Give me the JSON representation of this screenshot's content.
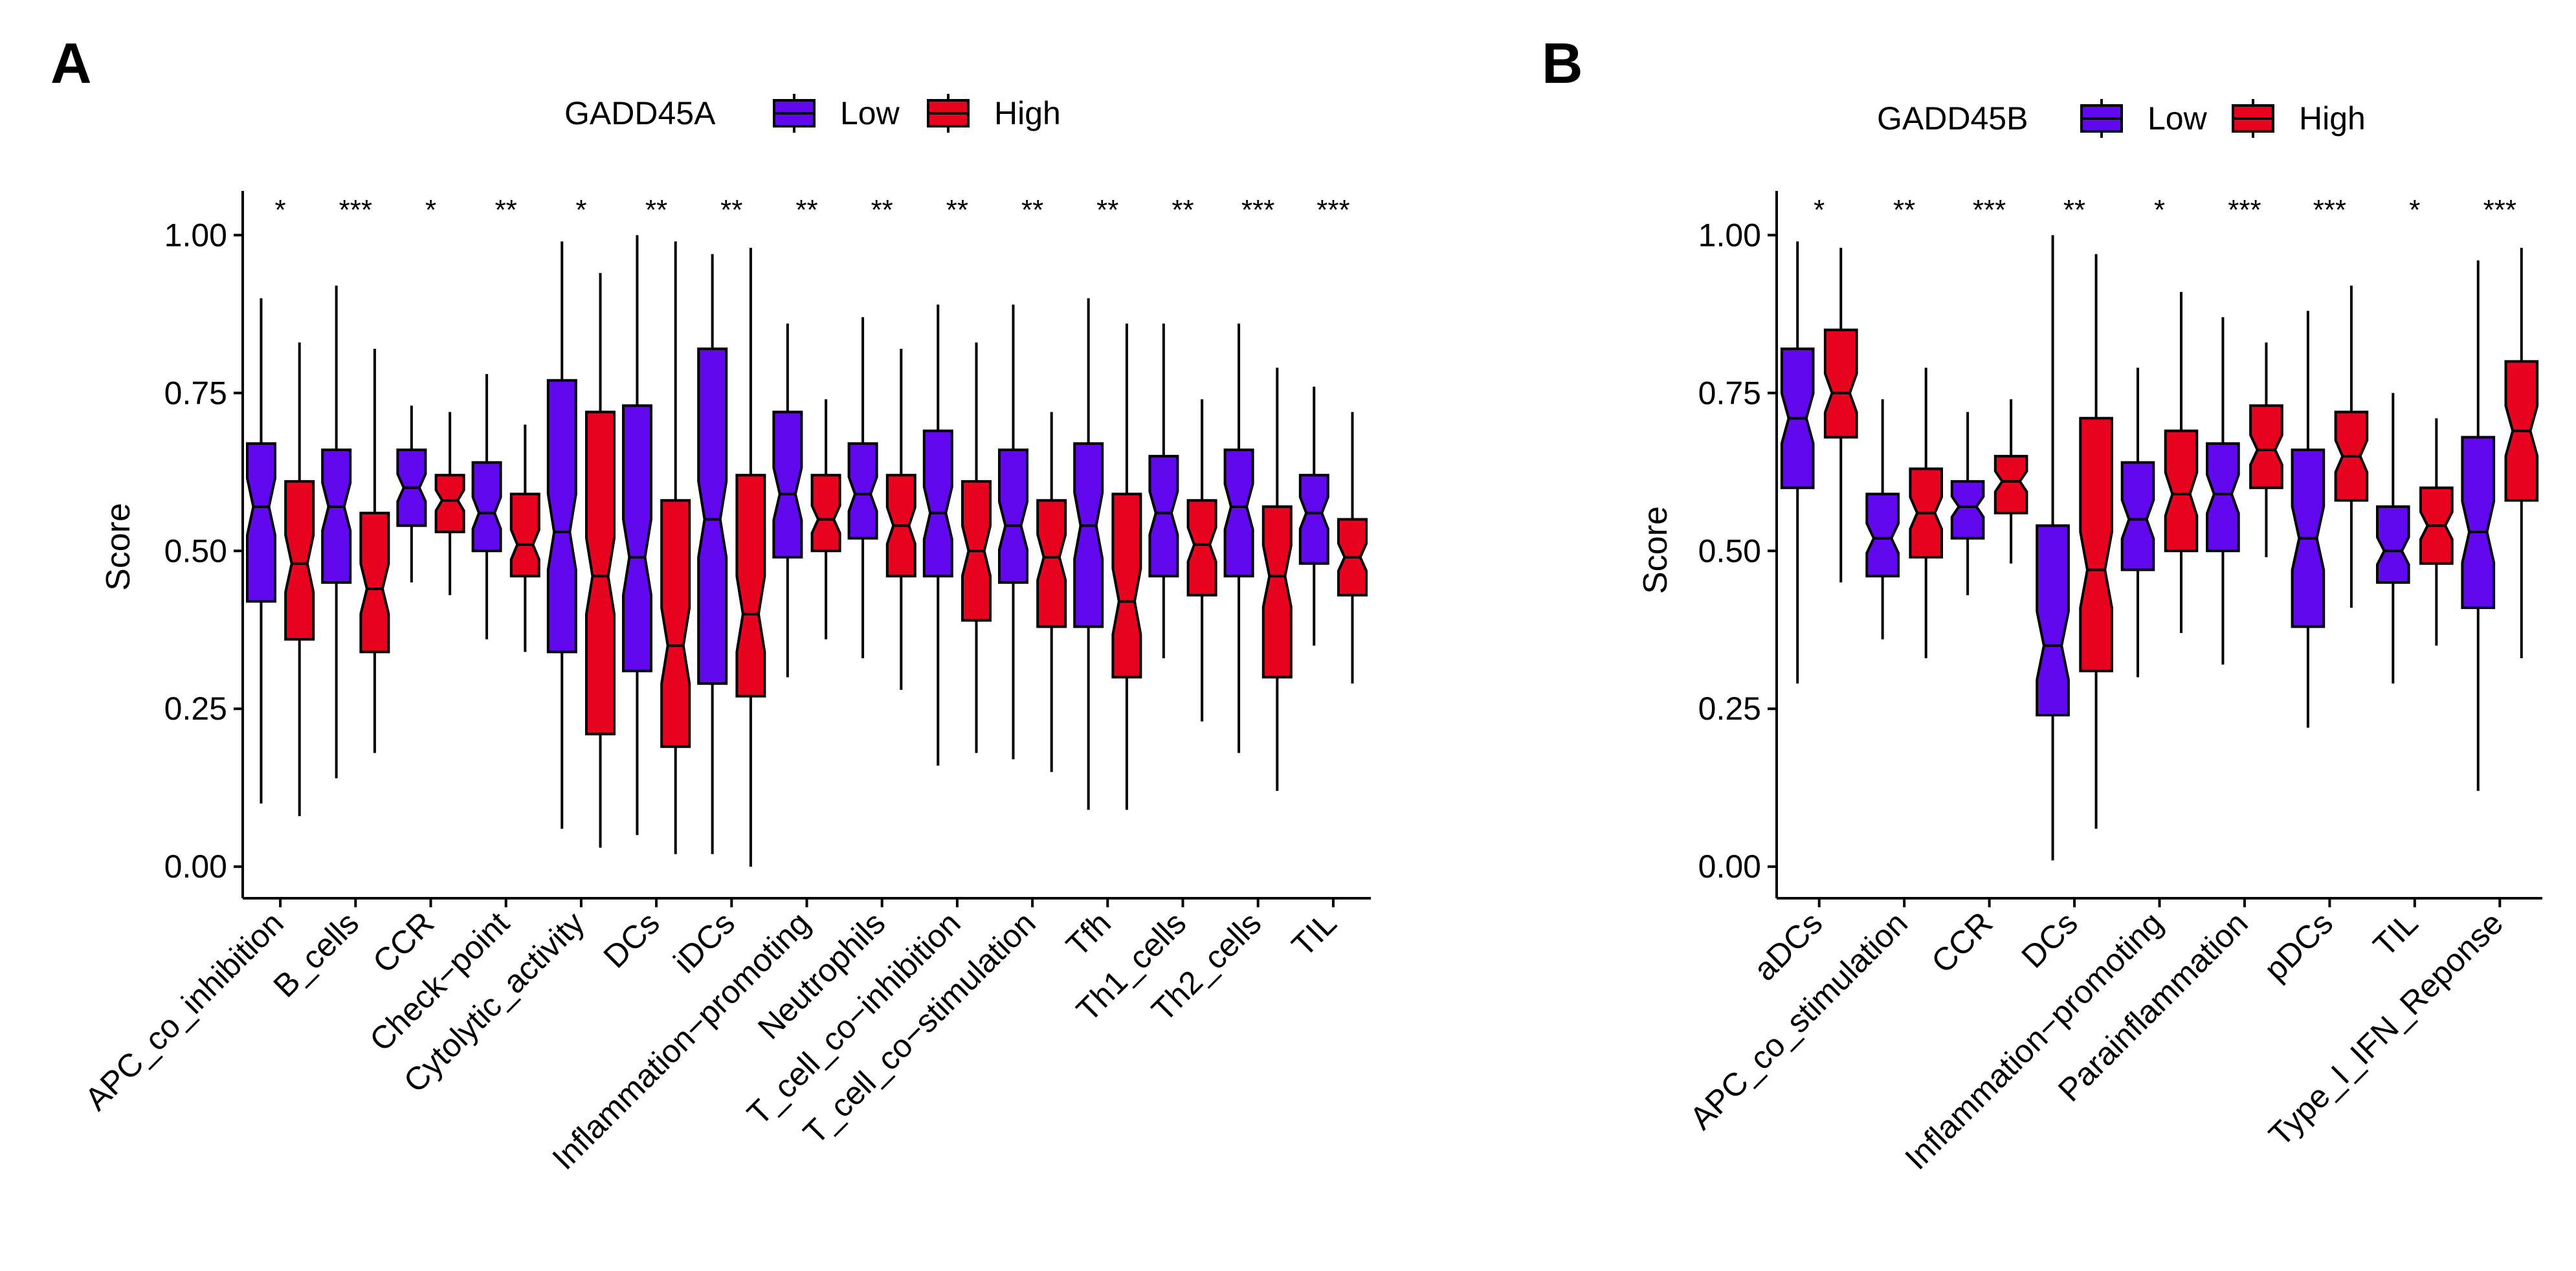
{
  "colors": {
    "low": "#6108ee",
    "high": "#e8041e",
    "stroke": "#000000"
  },
  "chart_data": [
    {
      "type": "boxplot",
      "panel_label": "A",
      "legend_title": "GADD45A",
      "legend_labels": [
        "Low",
        "High"
      ],
      "ylabel": "Score",
      "xlabel": "",
      "ylim": [
        -0.05,
        1.07
      ],
      "yticks": [
        "0.00",
        "0.25",
        "0.50",
        "0.75",
        "1.00"
      ],
      "categories": [
        "APC_co_inhibition",
        "B_cells",
        "CCR",
        "Check−point",
        "Cytolytic_activity",
        "DCs",
        "iDCs",
        "Inflammation−promoting",
        "Neutrophils",
        "T_cell_co−inhibition",
        "T_cell_co−stimulation",
        "Tfh",
        "Th1_cells",
        "Th2_cells",
        "TIL"
      ],
      "significance": [
        "*",
        "***",
        "*",
        "**",
        "*",
        "**",
        "**",
        "**",
        "**",
        "**",
        "**",
        "**",
        "**",
        "***",
        "***"
      ],
      "series": [
        {
          "name": "Low",
          "boxes": [
            [
              0.1,
              0.42,
              0.57,
              0.67,
              0.9
            ],
            [
              0.14,
              0.45,
              0.57,
              0.66,
              0.92
            ],
            [
              0.45,
              0.54,
              0.6,
              0.66,
              0.73
            ],
            [
              0.36,
              0.5,
              0.56,
              0.64,
              0.78
            ],
            [
              0.06,
              0.34,
              0.53,
              0.77,
              0.99
            ],
            [
              0.05,
              0.31,
              0.49,
              0.73,
              1.0
            ],
            [
              0.02,
              0.29,
              0.55,
              0.82,
              0.97
            ],
            [
              0.3,
              0.49,
              0.59,
              0.72,
              0.86
            ],
            [
              0.33,
              0.52,
              0.59,
              0.67,
              0.87
            ],
            [
              0.16,
              0.46,
              0.56,
              0.69,
              0.89
            ],
            [
              0.17,
              0.45,
              0.54,
              0.66,
              0.89
            ],
            [
              0.09,
              0.38,
              0.54,
              0.67,
              0.9
            ],
            [
              0.33,
              0.46,
              0.56,
              0.65,
              0.86
            ],
            [
              0.18,
              0.46,
              0.57,
              0.66,
              0.86
            ],
            [
              0.35,
              0.48,
              0.56,
              0.62,
              0.76
            ]
          ]
        },
        {
          "name": "High",
          "boxes": [
            [
              0.08,
              0.36,
              0.48,
              0.61,
              0.83
            ],
            [
              0.18,
              0.34,
              0.44,
              0.56,
              0.82
            ],
            [
              0.43,
              0.53,
              0.58,
              0.62,
              0.72
            ],
            [
              0.34,
              0.46,
              0.51,
              0.59,
              0.7
            ],
            [
              0.03,
              0.21,
              0.46,
              0.72,
              0.94
            ],
            [
              0.02,
              0.19,
              0.35,
              0.58,
              0.99
            ],
            [
              0.0,
              0.27,
              0.4,
              0.62,
              0.98
            ],
            [
              0.36,
              0.5,
              0.55,
              0.62,
              0.74
            ],
            [
              0.28,
              0.46,
              0.54,
              0.62,
              0.82
            ],
            [
              0.18,
              0.39,
              0.5,
              0.61,
              0.83
            ],
            [
              0.15,
              0.38,
              0.49,
              0.58,
              0.72
            ],
            [
              0.09,
              0.3,
              0.42,
              0.59,
              0.86
            ],
            [
              0.23,
              0.43,
              0.51,
              0.58,
              0.74
            ],
            [
              0.12,
              0.3,
              0.46,
              0.57,
              0.79
            ],
            [
              0.29,
              0.43,
              0.49,
              0.55,
              0.72
            ]
          ]
        }
      ]
    },
    {
      "type": "boxplot",
      "panel_label": "B",
      "legend_title": "GADD45B",
      "legend_labels": [
        "Low",
        "High"
      ],
      "ylabel": "Score",
      "xlabel": "",
      "ylim": [
        -0.05,
        1.07
      ],
      "yticks": [
        "0.00",
        "0.25",
        "0.50",
        "0.75",
        "1.00"
      ],
      "categories": [
        "aDCs",
        "APC_co_stimulation",
        "CCR",
        "DCs",
        "Inflammation−promoting",
        "Parainflammation",
        "pDCs",
        "TIL",
        "Type_I_IFN_Reponse"
      ],
      "significance": [
        "*",
        "**",
        "***",
        "**",
        "*",
        "***",
        "***",
        "*",
        "***"
      ],
      "series": [
        {
          "name": "Low",
          "boxes": [
            [
              0.29,
              0.6,
              0.71,
              0.82,
              0.99
            ],
            [
              0.36,
              0.46,
              0.52,
              0.59,
              0.74
            ],
            [
              0.43,
              0.52,
              0.57,
              0.61,
              0.72
            ],
            [
              0.01,
              0.24,
              0.35,
              0.54,
              1.0
            ],
            [
              0.3,
              0.47,
              0.55,
              0.64,
              0.79
            ],
            [
              0.32,
              0.5,
              0.59,
              0.67,
              0.87
            ],
            [
              0.22,
              0.38,
              0.52,
              0.66,
              0.88
            ],
            [
              0.29,
              0.45,
              0.5,
              0.57,
              0.75
            ],
            [
              0.12,
              0.41,
              0.53,
              0.68,
              0.96
            ]
          ]
        },
        {
          "name": "High",
          "boxes": [
            [
              0.45,
              0.68,
              0.75,
              0.85,
              0.98
            ],
            [
              0.33,
              0.49,
              0.56,
              0.63,
              0.79
            ],
            [
              0.48,
              0.56,
              0.61,
              0.65,
              0.74
            ],
            [
              0.06,
              0.31,
              0.47,
              0.71,
              0.97
            ],
            [
              0.37,
              0.5,
              0.59,
              0.69,
              0.91
            ],
            [
              0.49,
              0.6,
              0.66,
              0.73,
              0.83
            ],
            [
              0.41,
              0.58,
              0.65,
              0.72,
              0.92
            ],
            [
              0.35,
              0.48,
              0.54,
              0.6,
              0.71
            ],
            [
              0.33,
              0.58,
              0.69,
              0.8,
              0.98
            ]
          ]
        }
      ]
    }
  ]
}
